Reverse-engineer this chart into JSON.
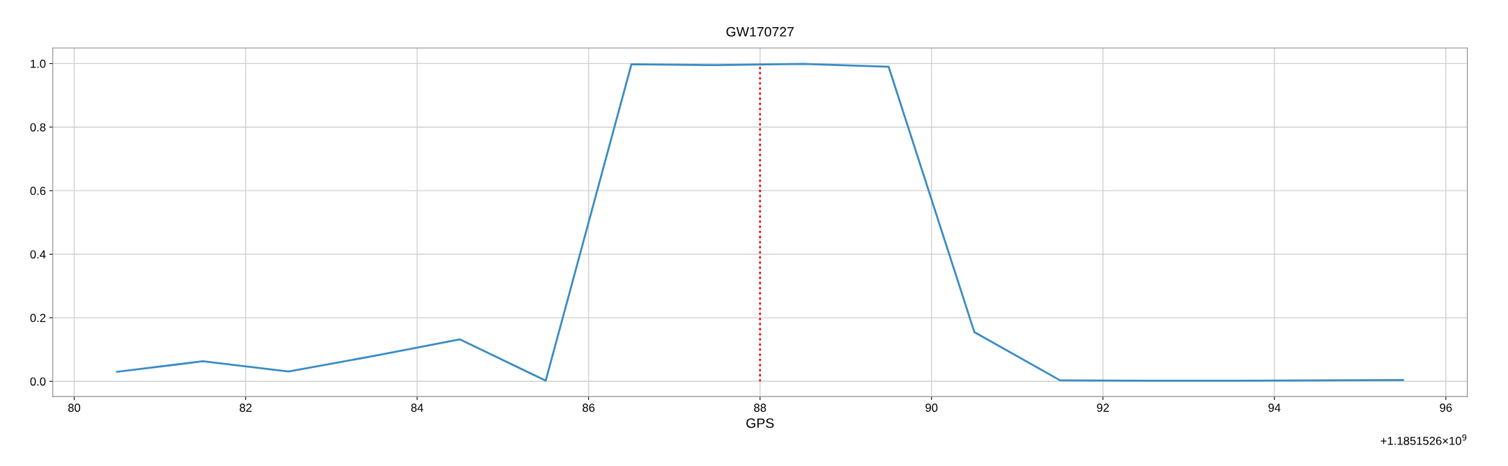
{
  "chart_data": {
    "type": "line",
    "title": "GW170727",
    "xlabel": "GPS",
    "x": [
      80.5,
      81.5,
      82.5,
      83.5,
      84.5,
      85.5,
      86.5,
      87.5,
      88.5,
      89.5,
      90.5,
      91.5,
      92.5,
      93.5,
      94.5,
      95.5
    ],
    "series": [
      {
        "color": "#3a8cc4",
        "values": [
          0.03,
          0.063,
          0.031,
          0.08,
          0.132,
          0.002,
          0.998,
          0.995,
          0.999,
          0.99,
          0.155,
          0.003,
          0.002,
          0.002,
          0.003,
          0.004
        ]
      }
    ],
    "xlim": [
      79.75,
      96.25
    ],
    "xticks": [
      80,
      82,
      84,
      86,
      88,
      90,
      92,
      94,
      96
    ],
    "ylim": [
      -0.048,
      1.049
    ],
    "yticks": [
      {
        "value": 0,
        "label": "0.0"
      },
      0.2,
      0.4,
      0.6,
      0.8,
      {
        "value": 1,
        "label": "1.0"
      }
    ],
    "ref_lines": [
      {
        "axis": "x",
        "value": 88.0,
        "color": "#ff0000",
        "line_style": "dotted"
      }
    ],
    "annotations": [
      "+1.1851526×10$^{9}$"
    ],
    "grid": true,
    "marker": "none",
    "line_style": "solid"
  }
}
